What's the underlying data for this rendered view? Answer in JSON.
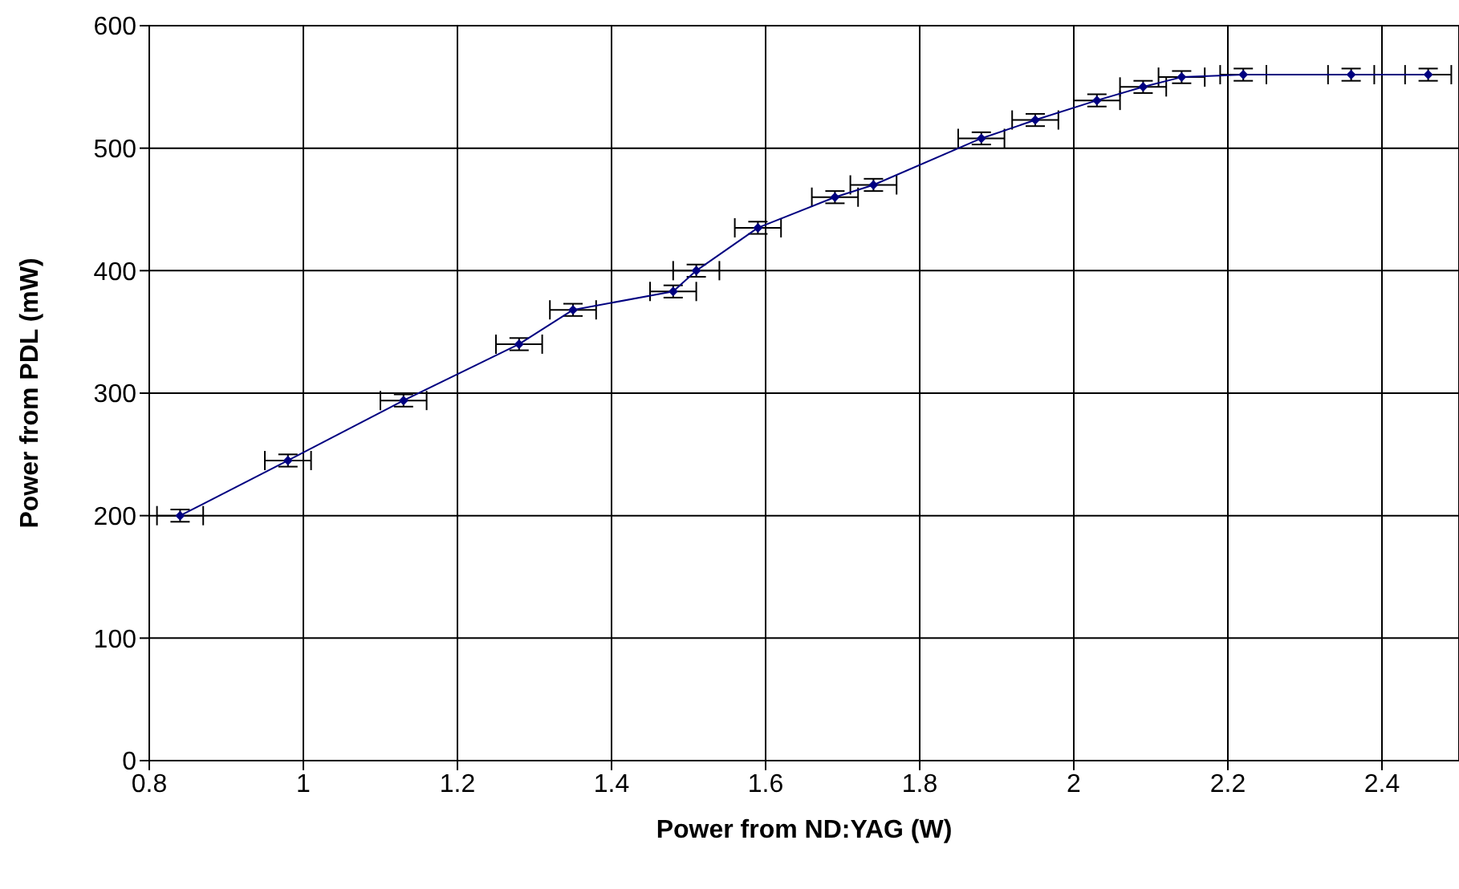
{
  "chart_data": {
    "type": "line",
    "xlabel": "Power from ND:YAG (W)",
    "ylabel": "Power from PDL (mW)",
    "x": [
      0.84,
      0.98,
      1.13,
      1.28,
      1.35,
      1.48,
      1.51,
      1.59,
      1.69,
      1.74,
      1.88,
      1.95,
      2.03,
      2.09,
      2.14,
      2.22,
      2.36,
      2.46
    ],
    "series": [
      {
        "color": "#000080",
        "values": [
          200,
          245,
          294,
          340,
          368,
          383,
          400,
          435,
          460,
          470,
          508,
          523,
          539,
          550,
          558,
          560,
          560,
          560
        ],
        "errors": [
          5,
          5,
          5,
          5,
          5,
          5,
          5,
          5,
          5,
          5,
          5,
          5,
          5,
          5,
          5,
          5,
          5,
          5
        ],
        "xerrors": [
          0.03,
          0.03,
          0.03,
          0.03,
          0.03,
          0.03,
          0.03,
          0.03,
          0.03,
          0.03,
          0.03,
          0.03,
          0.03,
          0.03,
          0.03,
          0.03,
          0.03,
          0.03
        ]
      }
    ],
    "xlim": [
      0.8,
      2.5
    ],
    "xticks": [
      0.8,
      1,
      1.2,
      1.4,
      1.6,
      1.8,
      2,
      2.2,
      2.4
    ],
    "ylim": [
      0,
      600
    ],
    "yticks": [
      0,
      100,
      200,
      300,
      400,
      500,
      600
    ],
    "grid": true,
    "marker": "diamond",
    "line_style": "solid"
  }
}
